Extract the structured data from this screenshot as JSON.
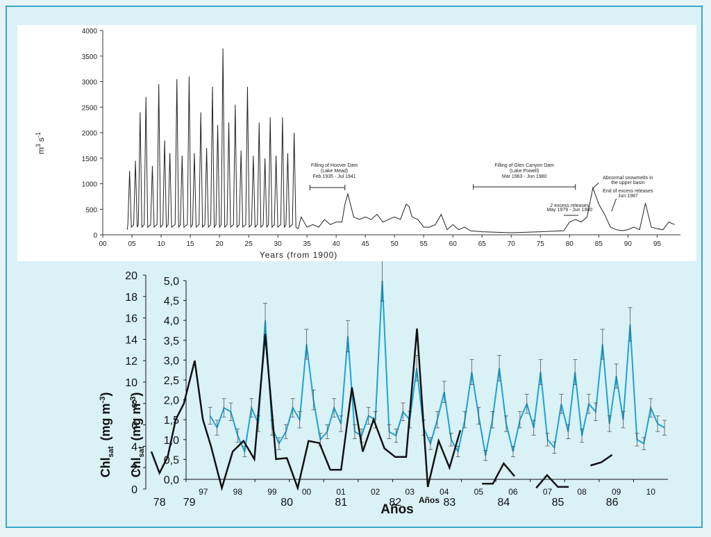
{
  "chart_data": [
    {
      "type": "line",
      "ylabel": "m³ s⁻¹",
      "ylabel_base": "m",
      "ylabel_sup1": "3",
      "ylabel_s": "s",
      "ylabel_sup2": "-1",
      "xlabel": "Years (from 1900)",
      "xlim": [
        0,
        99
      ],
      "ylim": [
        0,
        4000
      ],
      "x_ticks": [
        "00",
        "05",
        "10",
        "15",
        "20",
        "25",
        "30",
        "35",
        "40",
        "45",
        "50",
        "55",
        "60",
        "65",
        "70",
        "75",
        "80",
        "85",
        "90",
        "95"
      ],
      "y_ticks": [
        "0",
        "500",
        "1000",
        "1500",
        "2000",
        "2500",
        "3000",
        "3500",
        "4000"
      ],
      "annual_peaks": {
        "x": [
          4.6,
          5.6,
          6.4,
          7.4,
          8.5,
          9.6,
          10.6,
          11.5,
          12.7,
          13.6,
          14.8,
          15.7,
          16.8,
          17.8,
          18.8,
          19.7,
          20.6,
          21.6,
          22.7,
          23.7,
          24.8,
          25.8,
          26.8,
          27.8,
          28.7,
          29.7,
          30.8,
          31.7,
          32.8
        ],
        "y": [
          1250,
          1450,
          2400,
          2700,
          1350,
          2950,
          1850,
          1600,
          3050,
          1550,
          3100,
          1600,
          2400,
          1700,
          2900,
          2150,
          3650,
          2200,
          2550,
          1650,
          2900,
          1550,
          2200,
          1500,
          2300,
          1550,
          2300,
          1600,
          2000
        ]
      },
      "regulated": {
        "x": [
          34,
          35,
          36,
          37,
          38,
          39,
          40,
          41,
          41.5,
          42,
          43,
          44,
          45,
          46,
          47,
          48,
          49,
          50,
          51,
          52,
          52.5,
          53,
          54,
          55,
          56,
          57,
          58,
          59,
          60,
          61,
          62,
          63,
          65,
          70,
          75,
          79,
          80,
          81,
          82,
          83,
          84,
          85,
          86,
          87,
          88,
          89,
          90,
          91,
          92,
          93,
          94,
          95,
          96,
          97,
          98
        ],
        "y": [
          350,
          150,
          200,
          150,
          300,
          200,
          250,
          250,
          600,
          800,
          350,
          300,
          350,
          300,
          400,
          250,
          300,
          350,
          300,
          600,
          550,
          350,
          300,
          150,
          150,
          200,
          400,
          100,
          200,
          100,
          150,
          80,
          60,
          40,
          60,
          80,
          250,
          300,
          250,
          350,
          920,
          600,
          400,
          150,
          100,
          80,
          100,
          150,
          100,
          620,
          150,
          120,
          100,
          250,
          200
        ]
      },
      "annotations": {
        "hoover_line1": "Filling of Hoover Dam",
        "hoover_line2": "(Lake Mead)",
        "hoover_line3": "Feb 1935 - Jul 1941",
        "hoover_range": [
          35.5,
          41.5
        ],
        "glen_line1": "Filling of Glen Canyon Dam",
        "glen_line2": "(Lake Powell)",
        "glen_line3": "Mar 1963 - Jun 1980",
        "glen_range": [
          63.5,
          81
        ],
        "excess_line1": "2 excess releases",
        "excess_line2": "May 1979 - Jun 1980",
        "abnormal_line1": "Abnormal snowmelts in",
        "abnormal_line2": "the upper basin",
        "end_line1": "End of excess releases",
        "end_line2": "Jun 1987"
      }
    },
    {
      "type": "line",
      "left_axis_outer": {
        "ylabel": "Chlsat (mg m-3)",
        "ylabel_base": "Chl",
        "ylabel_sub": "sat",
        "ylabel_unit": "(mg m",
        "ylabel_sup": "-3",
        "ylim": [
          0,
          20
        ],
        "ticks": [
          "0",
          "2",
          "4",
          "6",
          "8",
          "10",
          "12",
          "14",
          "16",
          "18",
          "20"
        ]
      },
      "left_axis_inner": {
        "ylabel": "Chlsat (mg m-3)",
        "ylabel_base": "Chl",
        "ylabel_sub": "sat",
        "ylabel_unit": "(mg m",
        "ylabel_sup": "-3",
        "ylim": [
          0,
          5.0
        ],
        "ticks": [
          "0,0",
          "0,5",
          "1,0",
          "1,5",
          "2,0",
          "2,5",
          "3,0",
          "3,5",
          "4,0",
          "4,5",
          "5,0"
        ]
      },
      "x_axis_inner": {
        "xlabel": "Años",
        "ticks": [
          "97",
          "98",
          "99",
          "00",
          "01",
          "02",
          "03",
          "04",
          "05",
          "06",
          "07",
          "08",
          "09",
          "10"
        ]
      },
      "x_axis_outer": {
        "xlabel": "Años",
        "ticks": [
          "78",
          "79",
          "80",
          "81",
          "82",
          "83",
          "84",
          "85",
          "86"
        ]
      },
      "series": [
        {
          "color": "#1aa3d4",
          "x": [
            1997.7,
            1997.9,
            1998.1,
            1998.3,
            1998.5,
            1998.7,
            1998.9,
            1999.1,
            1999.3,
            1999.5,
            1999.7,
            1999.9,
            2000.1,
            2000.3,
            2000.5,
            2000.7,
            2000.9,
            2001.1,
            2001.3,
            2001.5,
            2001.7,
            2001.9,
            2002.1,
            2002.3,
            2002.5,
            2002.7,
            2002.9,
            2003.1,
            2003.3,
            2003.5,
            2003.7,
            2003.9,
            2004.1,
            2004.3,
            2004.5,
            2004.7,
            2004.9,
            2005.1,
            2005.3,
            2005.5,
            2005.7,
            2005.9,
            2006.1,
            2006.3,
            2006.5,
            2006.7,
            2006.9,
            2007.1,
            2007.3,
            2007.5,
            2007.7,
            2007.9,
            2008.1,
            2008.3,
            2008.5,
            2008.7,
            2008.9,
            2009.1,
            2009.3,
            2009.5,
            2009.7,
            2009.9,
            2010.1,
            2010.3,
            2010.5,
            2010.7,
            2010.9
          ],
          "y": [
            1.6,
            1.3,
            1.8,
            1.7,
            1.1,
            0.7,
            1.8,
            1.4,
            4.0,
            1.3,
            0.9,
            1.2,
            1.8,
            1.5,
            3.4,
            2.0,
            1.0,
            1.2,
            1.8,
            1.4,
            3.6,
            1.2,
            1.1,
            1.6,
            1.5,
            5.0,
            1.2,
            1.1,
            1.7,
            1.5,
            2.8,
            1.3,
            0.9,
            1.5,
            2.2,
            1.0,
            0.7,
            1.5,
            2.7,
            1.6,
            0.6,
            1.5,
            2.8,
            1.4,
            0.7,
            1.5,
            1.9,
            1.3,
            2.7,
            1.0,
            0.8,
            1.9,
            1.2,
            2.7,
            1.1,
            1.9,
            1.7,
            3.4,
            1.4,
            2.6,
            1.5,
            3.9,
            1.0,
            0.9,
            1.8,
            1.4,
            1.3
          ]
        },
        {
          "color": "#111111",
          "x": [
            1978.0,
            1978.15,
            1978.3,
            1978.45,
            1978.6,
            1978.8,
            1978.95,
            1979.1,
            1979.3,
            1979.5,
            1979.7,
            1979.9,
            1980.1,
            1980.3,
            1980.5,
            1980.7,
            1980.9,
            1981.1,
            1981.3,
            1981.5,
            1981.7,
            1981.9,
            1982.1,
            1982.3,
            1982.5,
            1982.7,
            1982.9,
            1983.1,
            1983.3,
            1983.5,
            1983.7,
            1984.1,
            1984.3,
            1984.5,
            1984.7,
            1985.1,
            1985.3,
            1985.5,
            1985.7,
            1986.1,
            1986.3,
            1986.5
          ],
          "y": [
            3.5,
            1.5,
            3.0,
            6.5,
            8.0,
            12.0,
            6.5,
            4.0,
            0.1,
            3.5,
            4.5,
            2.8,
            14.5,
            2.8,
            2.9,
            0.1,
            4.5,
            4.3,
            1.8,
            1.8,
            9.5,
            3.5,
            6.5,
            3.8,
            3.0,
            3.0,
            15.0,
            0.2,
            4.5,
            2.0,
            5.5,
            0.5,
            0.5,
            2.4,
            1.2,
            0.1,
            1.3,
            0.2,
            0.2,
            2.2,
            2.5,
            3.2
          ]
        }
      ]
    }
  ]
}
